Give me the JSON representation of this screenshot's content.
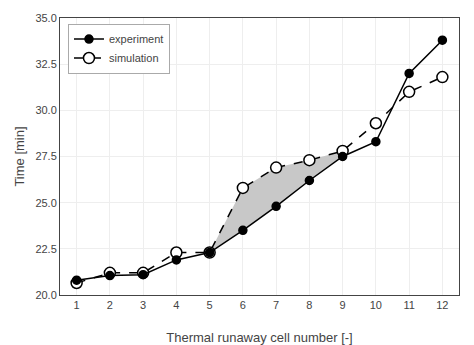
{
  "chart_data": {
    "type": "line",
    "x": [
      1,
      2,
      3,
      4,
      5,
      6,
      7,
      8,
      9,
      10,
      11,
      12
    ],
    "series": [
      {
        "name": "simulation",
        "color": "#000000",
        "marker": "open",
        "line_style": "dash",
        "values": [
          20.65,
          21.2,
          21.2,
          22.3,
          22.3,
          25.8,
          26.9,
          27.3,
          27.8,
          29.3,
          31.0,
          31.8
        ]
      },
      {
        "name": "experiment",
        "color": "#000000",
        "marker": "filled",
        "line_style": "solid",
        "values": [
          20.8,
          21.05,
          21.1,
          21.9,
          22.3,
          23.5,
          24.8,
          26.2,
          27.5,
          28.3,
          32.0,
          33.8
        ]
      }
    ],
    "shade": {
      "x": [
        5,
        6,
        7,
        8,
        9
      ],
      "lower": [
        22.3,
        23.5,
        24.8,
        26.2,
        27.5
      ],
      "upper": [
        22.3,
        25.8,
        26.9,
        27.3,
        27.8
      ],
      "color": "#c8c8c8"
    },
    "xlabel": "Thermal runaway cell number [-]",
    "ylabel": "Time [min]",
    "xlim": [
      0.5,
      12.5
    ],
    "xticks": [
      1,
      2,
      3,
      4,
      5,
      6,
      7,
      8,
      9,
      10,
      11,
      12
    ],
    "ylim": [
      20.0,
      35.0
    ],
    "yticks": [
      {
        "value": 20,
        "label": "20.0"
      },
      22.5,
      {
        "value": 25,
        "label": "25.0"
      },
      27.5,
      {
        "value": 30,
        "label": "30.0"
      },
      32.5,
      {
        "value": 35,
        "label": "35.0"
      }
    ],
    "grid": true,
    "legend": "upper left"
  }
}
